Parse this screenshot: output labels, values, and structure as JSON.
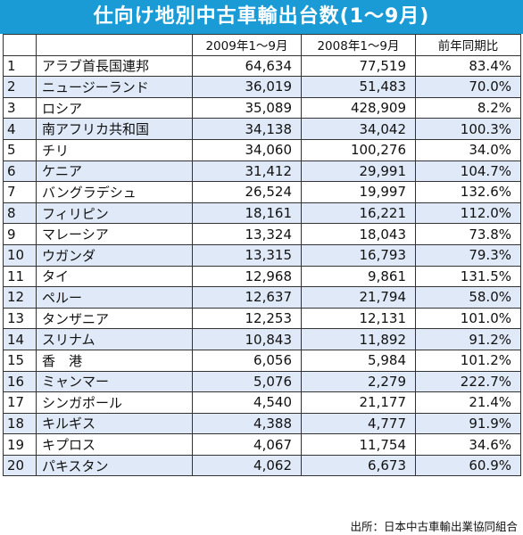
{
  "title": "仕向け地別中古車輸出台数(1～9月)",
  "headers": [
    "",
    "",
    "2009年1～9月",
    "2008年1～9月",
    "前年同期比"
  ],
  "rows": [
    {
      "rank": "1",
      "country": "アラブ首長国連邦",
      "y2009": "64,634",
      "y2008": "77,519",
      "ratio": "83.4%"
    },
    {
      "rank": "2",
      "country": "ニュージーランド",
      "y2009": "36,019",
      "y2008": "51,483",
      "ratio": "70.0%"
    },
    {
      "rank": "3",
      "country": "ロシア",
      "y2009": "35,089",
      "y2008": "428,909",
      "ratio": "8.2%"
    },
    {
      "rank": "4",
      "country": "南アフリカ共和国",
      "y2009": "34,138",
      "y2008": "34,042",
      "ratio": "100.3%"
    },
    {
      "rank": "5",
      "country": "チリ",
      "y2009": "34,060",
      "y2008": "100,276",
      "ratio": "34.0%"
    },
    {
      "rank": "6",
      "country": "ケニア",
      "y2009": "31,412",
      "y2008": "29,991",
      "ratio": "104.7%"
    },
    {
      "rank": "7",
      "country": "バングラデシュ",
      "y2009": "26,524",
      "y2008": "19,997",
      "ratio": "132.6%"
    },
    {
      "rank": "8",
      "country": "フィリピン",
      "y2009": "18,161",
      "y2008": "16,221",
      "ratio": "112.0%"
    },
    {
      "rank": "9",
      "country": "マレーシア",
      "y2009": "13,324",
      "y2008": "18,043",
      "ratio": "73.8%"
    },
    {
      "rank": "10",
      "country": "ウガンダ",
      "y2009": "13,315",
      "y2008": "16,793",
      "ratio": "79.3%"
    },
    {
      "rank": "11",
      "country": "タイ",
      "y2009": "12,968",
      "y2008": "9,861",
      "ratio": "131.5%"
    },
    {
      "rank": "12",
      "country": "ペルー",
      "y2009": "12,637",
      "y2008": "21,794",
      "ratio": "58.0%"
    },
    {
      "rank": "13",
      "country": "タンザニア",
      "y2009": "12,253",
      "y2008": "12,131",
      "ratio": "101.0%"
    },
    {
      "rank": "14",
      "country": "スリナム",
      "y2009": "10,843",
      "y2008": "11,892",
      "ratio": "91.2%"
    },
    {
      "rank": "15",
      "country": "香　港",
      "y2009": "6,056",
      "y2008": "5,984",
      "ratio": "101.2%"
    },
    {
      "rank": "16",
      "country": "ミャンマー",
      "y2009": "5,076",
      "y2008": "2,279",
      "ratio": "222.7%"
    },
    {
      "rank": "17",
      "country": "シンガポール",
      "y2009": "4,540",
      "y2008": "21,177",
      "ratio": "21.4%"
    },
    {
      "rank": "18",
      "country": "キルギス",
      "y2009": "4,388",
      "y2008": "4,777",
      "ratio": "91.9%"
    },
    {
      "rank": "19",
      "country": "キプロス",
      "y2009": "4,067",
      "y2008": "11,754",
      "ratio": "34.6%"
    },
    {
      "rank": "20",
      "country": "パキスタン",
      "y2009": "4,062",
      "y2008": "6,673",
      "ratio": "60.9%"
    }
  ],
  "source": "出所：日本中古車輸出業協同組合",
  "colors": {
    "title_bg": "#1a9bd5",
    "title_text": "#ffffff",
    "stripe": "#dfe9f7",
    "border": "#333333"
  }
}
